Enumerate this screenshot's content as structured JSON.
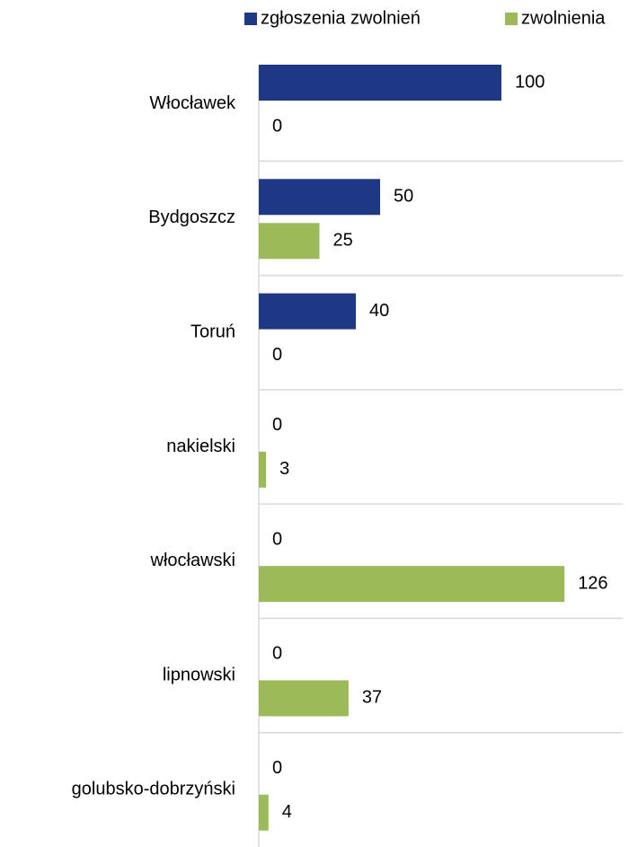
{
  "chart_data": {
    "type": "hbar",
    "categories": [
      "Włocławek",
      "Bydgoszcz",
      "Toruń",
      "nakielski",
      "włocławski",
      "lipnowski",
      "golubsko-dobrzyński"
    ],
    "series": [
      {
        "name": "zgłoszenia zwolnień",
        "color": "#1f3883",
        "values": [
          100,
          50,
          40,
          0,
          0,
          0,
          0
        ]
      },
      {
        "name": "zwolnienia",
        "color": "#9bbb59",
        "values": [
          0,
          25,
          0,
          3,
          126,
          37,
          4
        ]
      }
    ],
    "xlim": [
      0,
      150
    ],
    "grid": true,
    "legend": "top"
  }
}
